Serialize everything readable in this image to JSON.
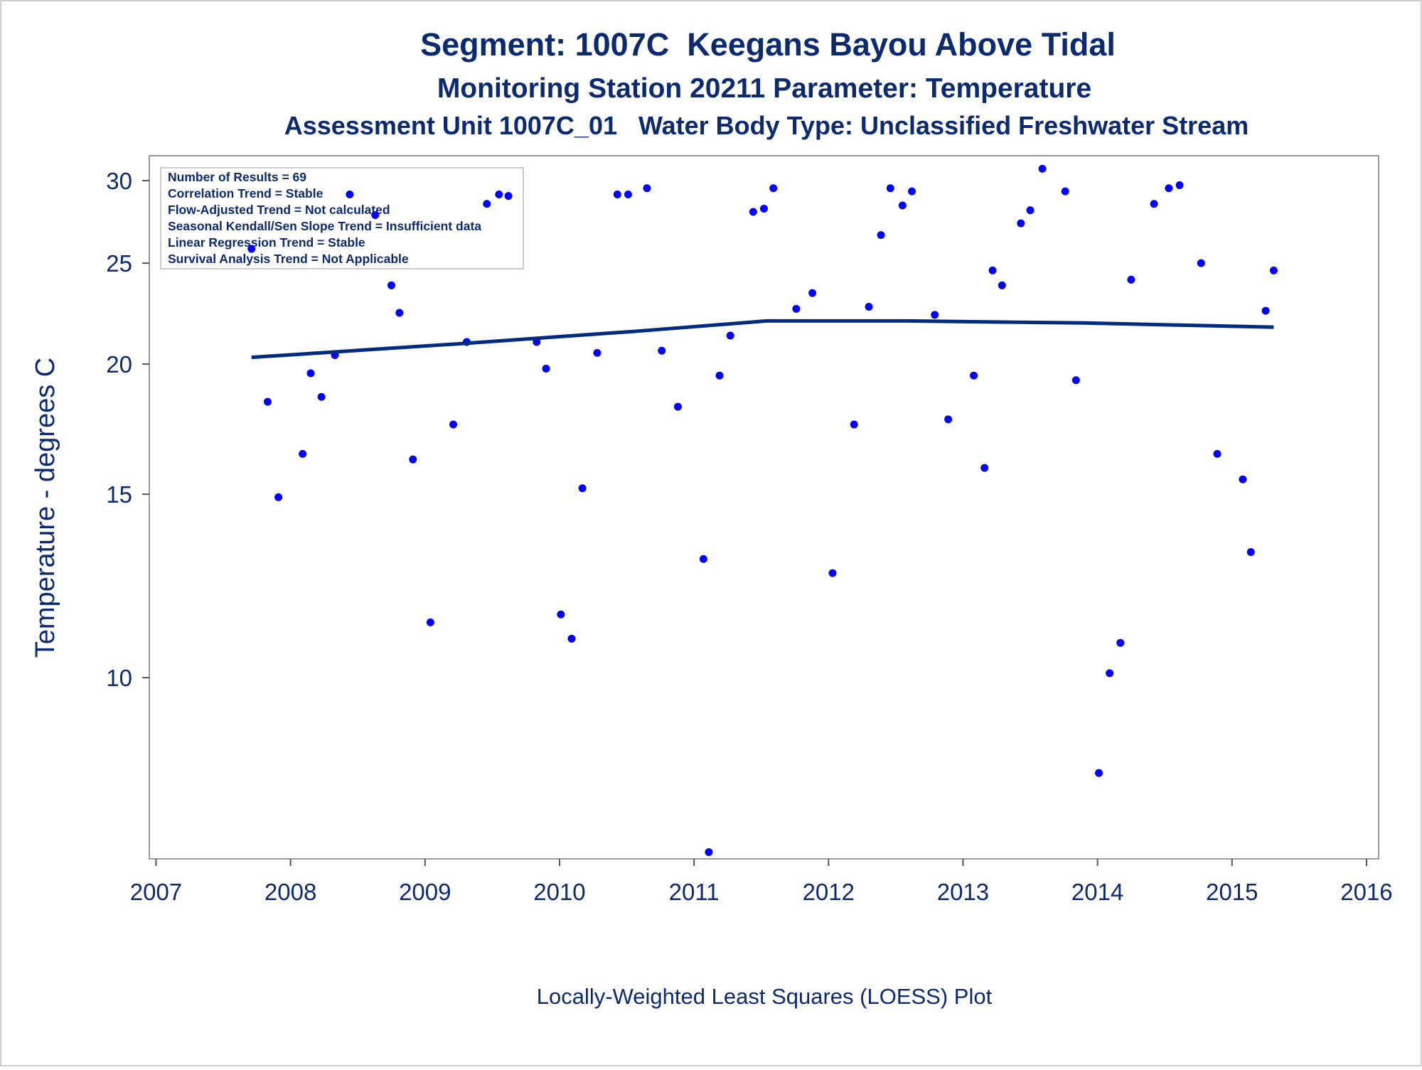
{
  "chart_data": {
    "type": "scatter",
    "title": "Segment: 1007C  Keegans Bayou Above Tidal",
    "subtitle": [
      "Monitoring Station 20211 Parameter: Temperature",
      "Assessment Unit 1007C_01   Water Body Type: Unclassified Freshwater Stream"
    ],
    "ylabel": "Temperature - degrees C",
    "xlabel": "Locally-Weighted Least Squares (LOESS) Plot",
    "annotations": [
      "Number of Results = 69",
      "Correlation Trend = Stable",
      "Flow-Adjusted Trend = Not calculated",
      "Seasonal Kendall/Sen Slope Trend = Insufficient data",
      "Linear Regression Trend = Stable",
      "Survival Analysis Trend = Not Applicable"
    ],
    "yscale": "log",
    "grid": false,
    "xlim": [
      2006.95,
      2016.09
    ],
    "xticks": [
      2007,
      2008,
      2009,
      2010,
      2011,
      2012,
      2013,
      2014,
      2015,
      2016
    ],
    "ylim": [
      6.7,
      31.7
    ],
    "yticks": [
      10,
      15,
      20,
      25,
      30
    ],
    "series": [
      {
        "type": "scatter",
        "color": "#0000ff",
        "x": [
          2007.71,
          2007.83,
          2007.91,
          2008.09,
          2008.15,
          2008.23,
          2008.33,
          2008.44,
          2008.63,
          2008.75,
          2008.81,
          2008.91,
          2009.04,
          2009.21,
          2009.31,
          2009.46,
          2009.55,
          2009.62,
          2009.83,
          2009.9,
          2010.01,
          2010.09,
          2010.17,
          2010.28,
          2010.43,
          2010.51,
          2010.65,
          2010.76,
          2010.88,
          2011.07,
          2011.11,
          2011.19,
          2011.27,
          2011.44,
          2011.52,
          2011.59,
          2011.76,
          2011.88,
          2012.03,
          2012.19,
          2012.3,
          2012.39,
          2012.46,
          2012.55,
          2012.62,
          2012.79,
          2012.89,
          2013.08,
          2013.16,
          2013.22,
          2013.29,
          2013.43,
          2013.5,
          2013.59,
          2013.76,
          2013.84,
          2014.01,
          2014.09,
          2014.17,
          2014.25,
          2014.42,
          2014.53,
          2014.61,
          2014.77,
          2014.89,
          2015.08,
          2015.14,
          2015.25,
          2015.31
        ],
        "values": [
          25.8,
          18.4,
          14.9,
          16.4,
          19.6,
          18.6,
          20.4,
          29.1,
          27.8,
          23.8,
          22.4,
          16.2,
          11.3,
          17.5,
          21.0,
          28.5,
          29.1,
          29.0,
          21.0,
          19.8,
          11.5,
          10.9,
          15.2,
          20.5,
          29.1,
          29.1,
          29.5,
          20.6,
          18.2,
          13.0,
          6.8,
          19.5,
          21.3,
          28.0,
          28.2,
          29.5,
          22.6,
          23.4,
          12.6,
          17.5,
          22.7,
          26.6,
          29.5,
          28.4,
          29.3,
          22.3,
          17.7,
          19.5,
          15.9,
          24.6,
          23.8,
          27.3,
          28.1,
          30.8,
          29.3,
          19.3,
          8.1,
          10.1,
          10.8,
          24.1,
          28.5,
          29.5,
          29.7,
          25.0,
          16.4,
          15.5,
          13.2,
          22.5,
          24.6
        ]
      },
      {
        "type": "line",
        "color": "#002b7f",
        "x": [
          2007.71,
          2009.21,
          2010.56,
          2011.54,
          2012.58,
          2013.93,
          2014.61,
          2015.31
        ],
        "values": [
          20.3,
          20.9,
          21.5,
          22.0,
          22.0,
          21.9,
          21.8,
          21.7
        ]
      }
    ]
  }
}
